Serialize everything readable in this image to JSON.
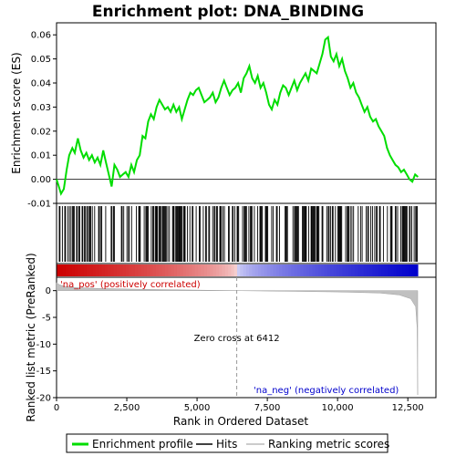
{
  "chart_data": {
    "type": "line",
    "title": "Enrichment plot: DNA_BINDING",
    "xlabel": "Rank in Ordered Dataset",
    "xlim": [
      0,
      13500
    ],
    "x_ticks": [
      0,
      2500,
      5000,
      7500,
      10000,
      12500
    ],
    "x_tick_labels": [
      "0",
      "2,500",
      "5,000",
      "7,500",
      "10,000",
      "12,500"
    ],
    "es_panel": {
      "ylabel": "Enrichment score (ES)",
      "ylim": [
        -0.01,
        0.065
      ],
      "y_ticks": [
        -0.01,
        0.0,
        0.01,
        0.02,
        0.03,
        0.04,
        0.05,
        0.06
      ],
      "y_tick_labels": [
        "-0.01",
        "0.00",
        "0.01",
        "0.02",
        "0.03",
        "0.04",
        "0.05",
        "0.06"
      ],
      "series_color": "#00dd00",
      "profile": [
        [
          0,
          0.0
        ],
        [
          80,
          -0.003
        ],
        [
          160,
          -0.006
        ],
        [
          260,
          -0.004
        ],
        [
          360,
          0.004
        ],
        [
          450,
          0.01
        ],
        [
          560,
          0.013
        ],
        [
          650,
          0.011
        ],
        [
          760,
          0.017
        ],
        [
          860,
          0.012
        ],
        [
          960,
          0.009
        ],
        [
          1060,
          0.011
        ],
        [
          1160,
          0.008
        ],
        [
          1260,
          0.01
        ],
        [
          1360,
          0.007
        ],
        [
          1460,
          0.009
        ],
        [
          1560,
          0.006
        ],
        [
          1660,
          0.012
        ],
        [
          1760,
          0.007
        ],
        [
          1860,
          0.002
        ],
        [
          1960,
          -0.003
        ],
        [
          2060,
          0.006
        ],
        [
          2160,
          0.004
        ],
        [
          2260,
          0.001
        ],
        [
          2360,
          0.002
        ],
        [
          2460,
          0.003
        ],
        [
          2560,
          0.001
        ],
        [
          2660,
          0.006
        ],
        [
          2760,
          0.003
        ],
        [
          2860,
          0.008
        ],
        [
          2960,
          0.01
        ],
        [
          3060,
          0.018
        ],
        [
          3160,
          0.017
        ],
        [
          3260,
          0.024
        ],
        [
          3360,
          0.027
        ],
        [
          3460,
          0.025
        ],
        [
          3560,
          0.03
        ],
        [
          3660,
          0.033
        ],
        [
          3760,
          0.031
        ],
        [
          3860,
          0.029
        ],
        [
          3960,
          0.03
        ],
        [
          4060,
          0.028
        ],
        [
          4160,
          0.031
        ],
        [
          4260,
          0.028
        ],
        [
          4360,
          0.03
        ],
        [
          4460,
          0.025
        ],
        [
          4560,
          0.029
        ],
        [
          4660,
          0.033
        ],
        [
          4760,
          0.036
        ],
        [
          4860,
          0.035
        ],
        [
          4960,
          0.037
        ],
        [
          5060,
          0.038
        ],
        [
          5160,
          0.035
        ],
        [
          5260,
          0.032
        ],
        [
          5360,
          0.033
        ],
        [
          5460,
          0.034
        ],
        [
          5560,
          0.036
        ],
        [
          5660,
          0.032
        ],
        [
          5760,
          0.034
        ],
        [
          5860,
          0.038
        ],
        [
          5960,
          0.041
        ],
        [
          6060,
          0.038
        ],
        [
          6160,
          0.035
        ],
        [
          6260,
          0.037
        ],
        [
          6360,
          0.038
        ],
        [
          6460,
          0.04
        ],
        [
          6560,
          0.036
        ],
        [
          6660,
          0.042
        ],
        [
          6760,
          0.044
        ],
        [
          6860,
          0.047
        ],
        [
          6960,
          0.042
        ],
        [
          7060,
          0.04
        ],
        [
          7160,
          0.043
        ],
        [
          7260,
          0.038
        ],
        [
          7360,
          0.04
        ],
        [
          7460,
          0.036
        ],
        [
          7560,
          0.031
        ],
        [
          7660,
          0.029
        ],
        [
          7760,
          0.033
        ],
        [
          7860,
          0.031
        ],
        [
          7960,
          0.036
        ],
        [
          8060,
          0.039
        ],
        [
          8160,
          0.038
        ],
        [
          8260,
          0.035
        ],
        [
          8360,
          0.038
        ],
        [
          8460,
          0.041
        ],
        [
          8560,
          0.037
        ],
        [
          8660,
          0.04
        ],
        [
          8760,
          0.042
        ],
        [
          8860,
          0.044
        ],
        [
          8960,
          0.041
        ],
        [
          9060,
          0.046
        ],
        [
          9160,
          0.045
        ],
        [
          9260,
          0.044
        ],
        [
          9360,
          0.048
        ],
        [
          9460,
          0.052
        ],
        [
          9560,
          0.058
        ],
        [
          9660,
          0.059
        ],
        [
          9760,
          0.051
        ],
        [
          9860,
          0.049
        ],
        [
          9960,
          0.052
        ],
        [
          10060,
          0.047
        ],
        [
          10160,
          0.05
        ],
        [
          10260,
          0.045
        ],
        [
          10360,
          0.042
        ],
        [
          10460,
          0.038
        ],
        [
          10560,
          0.04
        ],
        [
          10660,
          0.036
        ],
        [
          10760,
          0.034
        ],
        [
          10860,
          0.031
        ],
        [
          10960,
          0.028
        ],
        [
          11060,
          0.03
        ],
        [
          11160,
          0.026
        ],
        [
          11260,
          0.024
        ],
        [
          11360,
          0.025
        ],
        [
          11460,
          0.022
        ],
        [
          11560,
          0.02
        ],
        [
          11660,
          0.018
        ],
        [
          11760,
          0.013
        ],
        [
          11860,
          0.01
        ],
        [
          11960,
          0.008
        ],
        [
          12060,
          0.006
        ],
        [
          12160,
          0.005
        ],
        [
          12260,
          0.003
        ],
        [
          12360,
          0.004
        ],
        [
          12460,
          0.002
        ],
        [
          12560,
          0.0
        ],
        [
          12660,
          -0.001
        ],
        [
          12760,
          0.002
        ],
        [
          12860,
          0.001
        ]
      ]
    },
    "hits_panel": {
      "hit_density": [
        [
          0,
          0.4
        ],
        [
          500,
          0.7
        ],
        [
          1000,
          0.6
        ],
        [
          1500,
          0.5
        ],
        [
          2000,
          0.4
        ],
        [
          2500,
          0.5
        ],
        [
          3000,
          0.5
        ],
        [
          3500,
          0.6
        ],
        [
          4000,
          0.7
        ],
        [
          4500,
          0.9
        ],
        [
          5000,
          0.8
        ],
        [
          5500,
          0.6
        ],
        [
          6000,
          0.5
        ],
        [
          6500,
          0.5
        ],
        [
          7000,
          0.6
        ],
        [
          7500,
          0.5
        ],
        [
          8000,
          0.5
        ],
        [
          8500,
          0.6
        ],
        [
          9000,
          0.7
        ],
        [
          9500,
          0.9
        ],
        [
          10000,
          0.5
        ],
        [
          10500,
          0.4
        ],
        [
          11000,
          0.6
        ],
        [
          11500,
          0.5
        ],
        [
          12000,
          0.6
        ],
        [
          12500,
          0.8
        ],
        [
          12850,
          0.7
        ]
      ],
      "max_rank": 12850
    },
    "metric_panel": {
      "ylabel": "Ranked list metric (PreRanked)",
      "ylim": [
        -20,
        2.5
      ],
      "y_ticks": [
        0,
        -5,
        -10,
        -15,
        -20
      ],
      "y_tick_labels": [
        "0",
        "-5",
        "-10",
        "-15",
        "-20"
      ],
      "metric": [
        [
          0,
          1.5
        ],
        [
          100,
          1.1
        ],
        [
          300,
          0.8
        ],
        [
          700,
          0.55
        ],
        [
          1500,
          0.4
        ],
        [
          3000,
          0.25
        ],
        [
          5000,
          0.1
        ],
        [
          6412,
          0.0
        ],
        [
          8000,
          -0.1
        ],
        [
          10000,
          -0.25
        ],
        [
          11500,
          -0.45
        ],
        [
          12200,
          -0.8
        ],
        [
          12600,
          -1.5
        ],
        [
          12780,
          -3.0
        ],
        [
          12830,
          -7.0
        ],
        [
          12850,
          -19.5
        ]
      ],
      "zero_cross_label": "Zero cross at 6412",
      "zero_cross": 6412,
      "pos_label": "'na_pos' (positively correlated)",
      "neg_label": "'na_neg' (negatively correlated)",
      "pos_color": "#cc0000",
      "neg_color": "#0000cc"
    },
    "legend": {
      "placement": "bottom",
      "items": [
        {
          "label": "Enrichment profile",
          "color": "#00dd00"
        },
        {
          "label": "Hits",
          "color": "#000000"
        },
        {
          "label": "Ranking metric scores",
          "color": "#bbbbbb"
        }
      ]
    }
  }
}
